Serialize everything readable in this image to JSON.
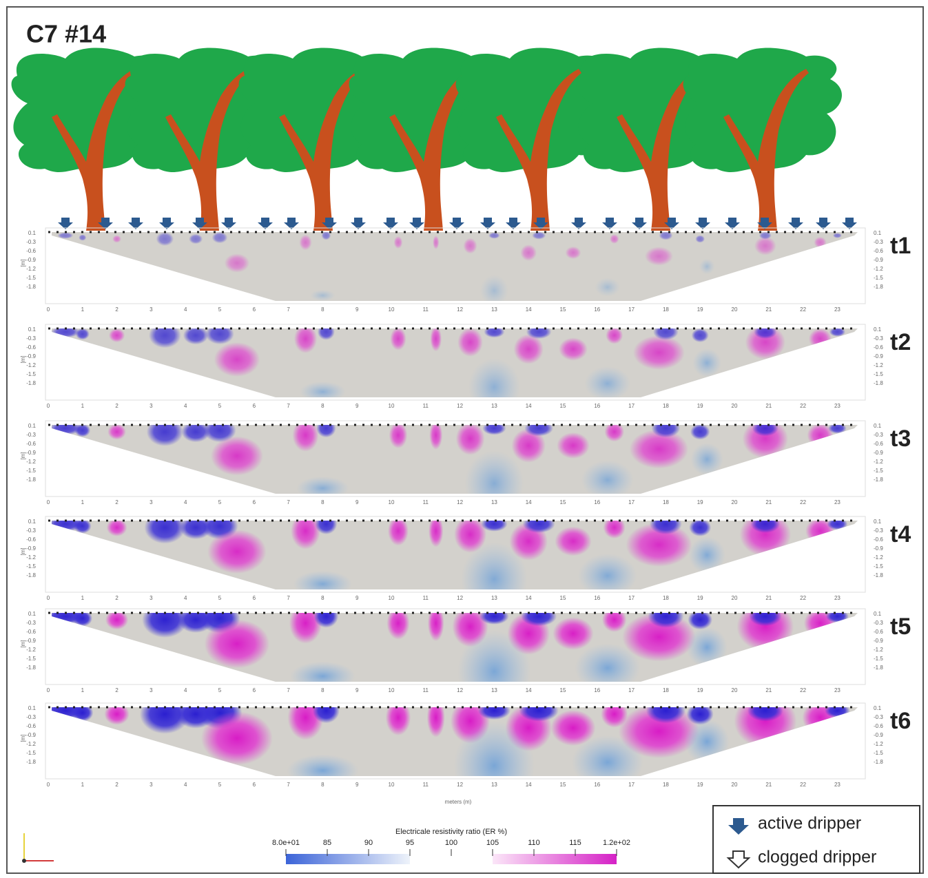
{
  "title": "C7 #14",
  "panels": [
    {
      "label": "t1"
    },
    {
      "label": "t2"
    },
    {
      "label": "t3"
    },
    {
      "label": "t4"
    },
    {
      "label": "t5"
    },
    {
      "label": "t6"
    }
  ],
  "x_axis": {
    "label": "meters (m)",
    "ticks": [
      "0",
      "1",
      "2",
      "3",
      "4",
      "5",
      "6",
      "7",
      "8",
      "9",
      "10",
      "11",
      "12",
      "13",
      "14",
      "15",
      "16",
      "17",
      "18",
      "19",
      "20",
      "21",
      "22",
      "23"
    ]
  },
  "y_axis": {
    "label": "[m]",
    "ticks": [
      "0.1",
      "-0.3",
      "-0.6",
      "-0.9",
      "-1.2",
      "-1.5",
      "-1.8"
    ]
  },
  "colorbar": {
    "title": "Electricale resistivity ratio (ER %)",
    "ticks": [
      "8.0e+01",
      "85",
      "90",
      "95",
      "100",
      "105",
      "110",
      "115",
      "1.2e+02"
    ]
  },
  "legend": [
    {
      "label": "active dripper"
    },
    {
      "label": "clogged dripper"
    }
  ]
}
